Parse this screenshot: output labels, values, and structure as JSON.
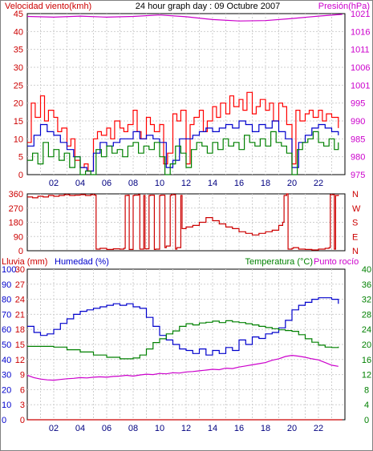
{
  "chart_data": [
    {
      "type": "line",
      "title": "24 hour graph day : 09 Octubre 2007",
      "ylabel_left": "Velocidad viento(kmh)",
      "ylabel_right": "Presión(hPa)",
      "x_ticks": [
        "02",
        "04",
        "06",
        "08",
        "10",
        "12",
        "14",
        "16",
        "18",
        "20",
        "22"
      ],
      "xlim": [
        0,
        24
      ],
      "ylim_left": [
        0,
        45
      ],
      "yticks_left": [
        0,
        5,
        10,
        15,
        20,
        25,
        30,
        35,
        40,
        45
      ],
      "ylim_right": [
        975,
        1021
      ],
      "yticks_right": [
        975,
        980,
        985,
        990,
        995,
        1001,
        1006,
        1011,
        1016,
        1021
      ],
      "grid": true,
      "series": [
        {
          "key": "gust",
          "axis": "left",
          "color": "#ff0000",
          "x": [
            0,
            0.3,
            0.6,
            1,
            1.3,
            1.6,
            2,
            2.3,
            2.6,
            3,
            3.3,
            3.6,
            4,
            4.3,
            4.6,
            5,
            5.3,
            5.6,
            6,
            6.3,
            6.6,
            7,
            7.3,
            7.6,
            8,
            8.3,
            8.6,
            9,
            9.3,
            9.6,
            10,
            10.3,
            10.6,
            11,
            11.3,
            11.6,
            12,
            12.3,
            12.6,
            13,
            13.3,
            13.6,
            14,
            14.3,
            14.6,
            15,
            15.3,
            15.6,
            16,
            16.3,
            16.6,
            17,
            17.3,
            17.6,
            18,
            18.3,
            18.6,
            19,
            19.3,
            19.6,
            20,
            20.3,
            20.6,
            21,
            21.3,
            21.6,
            22,
            22.3,
            22.6,
            23,
            23.5
          ],
          "y": [
            9,
            20,
            16,
            22,
            15,
            18,
            16,
            12,
            13,
            8,
            10,
            4,
            2,
            3,
            1,
            10,
            12,
            11,
            13,
            10,
            15,
            13,
            12,
            14,
            18,
            12,
            10,
            16,
            14,
            12,
            14,
            3,
            6,
            17,
            15,
            18,
            3,
            14,
            16,
            18,
            12,
            15,
            19,
            16,
            20,
            17,
            22,
            19,
            21,
            18,
            23,
            17,
            19,
            21,
            18,
            20,
            15,
            20,
            19,
            14,
            3,
            18,
            15,
            17,
            18,
            16,
            18,
            15,
            17,
            16,
            13
          ]
        },
        {
          "key": "wind",
          "axis": "left",
          "color": "#0000cc",
          "x": [
            0,
            0.5,
            1,
            1.5,
            2,
            2.5,
            3,
            3.5,
            4,
            4.5,
            5,
            5.5,
            6,
            6.5,
            7,
            7.5,
            8,
            8.5,
            9,
            9.5,
            10,
            10.5,
            11,
            11.5,
            12,
            12.5,
            13,
            13.5,
            14,
            14.5,
            15,
            15.5,
            16,
            16.5,
            17,
            17.5,
            18,
            18.5,
            19,
            19.5,
            20,
            20.5,
            21,
            21.5,
            22,
            22.5,
            23,
            23.5
          ],
          "y": [
            8,
            11,
            14,
            12,
            11,
            9,
            7,
            5,
            2,
            1,
            6,
            9,
            8,
            9,
            10,
            10,
            12,
            10,
            11,
            10,
            9,
            2,
            4,
            10,
            10,
            11,
            12,
            13,
            12,
            13,
            14,
            13,
            15,
            14,
            12,
            14,
            13,
            15,
            12,
            10,
            2,
            9,
            11,
            13,
            14,
            13,
            12,
            11
          ]
        },
        {
          "key": "windavg",
          "axis": "left",
          "color": "#008000",
          "x": [
            0,
            0.4,
            0.8,
            1.2,
            1.6,
            2,
            2.4,
            2.8,
            3.2,
            3.6,
            4,
            4.4,
            4.8,
            5.2,
            5.6,
            6,
            6.4,
            6.8,
            7.2,
            7.6,
            8,
            8.4,
            8.8,
            9.2,
            9.6,
            10,
            10.4,
            10.8,
            11.2,
            11.6,
            12,
            12.4,
            12.8,
            13.2,
            13.6,
            14,
            14.4,
            14.8,
            15.2,
            15.6,
            16,
            16.4,
            16.8,
            17.2,
            17.6,
            18,
            18.4,
            18.8,
            19.2,
            19.6,
            20,
            20.4,
            20.8,
            21.2,
            21.6,
            22,
            22.4,
            22.8,
            23.2,
            23.5
          ],
          "y": [
            4,
            6,
            3,
            9,
            5,
            7,
            4,
            6,
            2,
            5,
            0,
            1,
            0,
            7,
            5,
            8,
            6,
            7,
            5,
            8,
            9,
            6,
            8,
            7,
            9,
            5,
            0,
            3,
            8,
            6,
            2,
            7,
            9,
            8,
            6,
            9,
            7,
            10,
            8,
            9,
            7,
            11,
            9,
            8,
            10,
            8,
            12,
            9,
            8,
            6,
            0,
            7,
            9,
            10,
            12,
            9,
            8,
            10,
            7,
            9
          ]
        },
        {
          "key": "pressure",
          "axis": "right",
          "color": "#cc00cc",
          "x": [
            0,
            2,
            4,
            6,
            8,
            10,
            12,
            14,
            16,
            18,
            20,
            22,
            23.8
          ],
          "y": [
            1020.2,
            1020.0,
            1020.3,
            1020.0,
            1020.2,
            1020.6,
            1020.1,
            1019.3,
            1018.9,
            1019.0,
            1019.6,
            1020.3,
            1020.8
          ]
        }
      ]
    },
    {
      "type": "line",
      "yticks_left": [
        0,
        90,
        180,
        270,
        360
      ],
      "ylim_left": [
        0,
        360
      ],
      "yticks_right": [
        "N",
        "W",
        "S",
        "E",
        "N"
      ],
      "x_ticks": [],
      "xlim": [
        0,
        24
      ],
      "grid": true,
      "series": [
        {
          "key": "dir",
          "axis": "left",
          "color": "#cc0000",
          "x": [
            0,
            0.4,
            0.8,
            1.2,
            1.6,
            2,
            2.4,
            2.8,
            3.2,
            3.6,
            4,
            4.4,
            4.8,
            5.1,
            5.2,
            5.5,
            6,
            6.5,
            7,
            7.3,
            7.4,
            7.6,
            7.7,
            8,
            8.1,
            8.4,
            8.5,
            8.8,
            8.9,
            9.2,
            9.3,
            9.6,
            9.7,
            10,
            10.1,
            10.4,
            10.5,
            10.8,
            10.9,
            11.2,
            11.3,
            11.6,
            11.7,
            12,
            12.5,
            13,
            13.5,
            14,
            14.5,
            15,
            15.5,
            16,
            16.5,
            17,
            17.5,
            18,
            18.5,
            19,
            19.3,
            19.4,
            19.6,
            19.7,
            20,
            20.1,
            20.5,
            21,
            21.5,
            22,
            22.5,
            22.8,
            22.9,
            23.2,
            23.3,
            23.5
          ],
          "y": [
            340,
            335,
            345,
            340,
            350,
            345,
            350,
            355,
            350,
            352,
            355,
            350,
            355,
            352,
            10,
            15,
            8,
            12,
            10,
            15,
            350,
            352,
            8,
            350,
            352,
            355,
            10,
            350,
            12,
            350,
            352,
            8,
            10,
            350,
            352,
            20,
            30,
            350,
            355,
            10,
            20,
            350,
            140,
            150,
            160,
            180,
            210,
            190,
            170,
            150,
            140,
            120,
            110,
            100,
            110,
            120,
            130,
            160,
            180,
            350,
            360,
            10,
            15,
            20,
            10,
            8,
            5,
            10,
            15,
            20,
            355,
            10,
            350,
            355
          ]
        }
      ]
    },
    {
      "type": "line",
      "ylabel_left": "Lluvia (mm)",
      "ylabel_left2": "Humedad (%)",
      "ylabel_right": "Temperatura (°C)",
      "ylabel_right2": "Punto rocío",
      "x_ticks": [
        "02",
        "04",
        "06",
        "08",
        "10",
        "12",
        "14",
        "16",
        "18",
        "20",
        "22"
      ],
      "xlim": [
        0,
        24
      ],
      "ylim_rain": [
        0,
        30
      ],
      "yticks_rain": [
        0,
        3,
        6,
        9,
        12,
        15,
        18,
        21,
        24,
        27,
        30
      ],
      "ylim_hum": [
        0,
        100
      ],
      "yticks_hum": [
        0,
        10,
        20,
        30,
        40,
        50,
        60,
        70,
        80,
        90,
        100
      ],
      "ylim_temp": [
        0,
        40
      ],
      "yticks_temp": [
        0,
        4,
        8,
        12,
        16,
        20,
        24,
        28,
        32,
        36,
        40
      ],
      "grid": true,
      "series": [
        {
          "key": "rain",
          "axis": "rain",
          "color": "#cc0000",
          "x": [
            0,
            23.8
          ],
          "y": [
            0,
            0
          ]
        },
        {
          "key": "humidity",
          "axis": "hum",
          "color": "#0000cc",
          "x": [
            0,
            0.5,
            1,
            1.5,
            2,
            2.5,
            3,
            3.5,
            4,
            4.5,
            5,
            5.5,
            6,
            6.5,
            7,
            7.5,
            8,
            8.5,
            9,
            9.5,
            10,
            10.5,
            11,
            11.5,
            12,
            12.5,
            13,
            13.5,
            14,
            14.5,
            15,
            15.5,
            16,
            16.5,
            17,
            17.5,
            18,
            18.5,
            19,
            19.5,
            20,
            20.5,
            21,
            21.5,
            22,
            22.5,
            23,
            23.5
          ],
          "y": [
            62,
            58,
            56,
            57,
            60,
            64,
            67,
            70,
            72,
            73,
            74,
            75,
            76,
            77,
            76,
            77,
            75,
            74,
            68,
            62,
            56,
            53,
            50,
            47,
            46,
            44,
            47,
            43,
            46,
            44,
            48,
            46,
            53,
            50,
            55,
            54,
            57,
            58,
            61,
            66,
            73,
            76,
            78,
            80,
            81,
            81,
            80,
            77
          ]
        },
        {
          "key": "temperature",
          "axis": "temp",
          "color": "#008000",
          "x": [
            0,
            1,
            2,
            3,
            4,
            5,
            6,
            7,
            8,
            8.5,
            9,
            9.5,
            10,
            10.5,
            11,
            11.5,
            12,
            12.5,
            13,
            13.5,
            14,
            14.5,
            15,
            15.5,
            16,
            16.5,
            17,
            17.5,
            18,
            18.5,
            19,
            19.5,
            20,
            20.5,
            21,
            21.5,
            22,
            22.5,
            23,
            23.5
          ],
          "y": [
            19.5,
            19.5,
            19.3,
            18.6,
            18,
            17.2,
            16.6,
            16.2,
            16.4,
            17.2,
            18.8,
            20.5,
            21.5,
            22.8,
            23.6,
            24.8,
            25.5,
            25.2,
            25.7,
            25.9,
            26.2,
            25.8,
            26.3,
            26,
            25.8,
            25.5,
            25.2,
            24.8,
            24.5,
            24.2,
            23.9,
            23.7,
            23.5,
            22.6,
            21.5,
            20.6,
            19.8,
            19.3,
            19.2,
            19.4
          ]
        },
        {
          "key": "dewpoint",
          "axis": "temp",
          "color": "#cc00cc",
          "x": [
            0,
            0.5,
            1,
            1.5,
            2,
            2.5,
            3,
            3.5,
            4,
            4.5,
            5,
            5.5,
            6,
            6.5,
            7,
            7.5,
            8,
            8.5,
            9,
            9.5,
            10,
            10.5,
            11,
            11.5,
            12,
            12.5,
            13,
            13.5,
            14,
            14.5,
            15,
            15.5,
            16,
            16.5,
            17,
            17.5,
            18,
            18.5,
            19,
            19.5,
            20,
            20.5,
            21,
            21.5,
            22,
            22.5,
            23,
            23.5
          ],
          "y": [
            11.8,
            11.2,
            10.8,
            10.6,
            10.5,
            10.7,
            10.9,
            11,
            11.2,
            11.1,
            11.3,
            11.4,
            11.3,
            11.5,
            11.6,
            11.8,
            11.6,
            11.9,
            12.1,
            12,
            12.3,
            12.2,
            12.5,
            12.4,
            12.7,
            12.8,
            13,
            13.2,
            13.4,
            13.3,
            13.7,
            13.6,
            14,
            14.3,
            14.6,
            14.9,
            15.2,
            15.8,
            16.2,
            16.8,
            17.1,
            16.9,
            16.6,
            16.2,
            15.9,
            15.2,
            14.5,
            14.2
          ]
        }
      ]
    }
  ]
}
